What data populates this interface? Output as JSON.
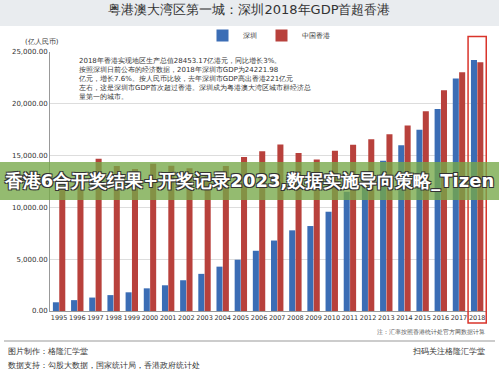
{
  "chart_data": {
    "type": "bar",
    "title": "粤港澳大湾区第一城：深圳2018年GDP首超香港",
    "y_label": "(亿人民币)",
    "categories": [
      "1995",
      "1996",
      "1997",
      "1998",
      "1999",
      "2000",
      "2001",
      "2002",
      "2003",
      "2004",
      "2005",
      "2006",
      "2007",
      "2008",
      "2009",
      "2010",
      "2011",
      "2012",
      "2013",
      "2014",
      "2015",
      "2016",
      "2017",
      "2018"
    ],
    "series": [
      {
        "name": "深圳",
        "color": "#3b6db5",
        "values": [
          842,
          1048,
          1297,
          1534,
          1804,
          2187,
          2482,
          2969,
          3585,
          4282,
          4951,
          5814,
          6802,
          7787,
          8201,
          9582,
          11506,
          12950,
          14500,
          16002,
          17503,
          19493,
          22438,
          24222
        ]
      },
      {
        "name": "中国香港",
        "color": "#b8413c",
        "values": [
          12074,
          13270,
          14707,
          13985,
          13700,
          14217,
          14026,
          13770,
          13364,
          14000,
          14873,
          15422,
          16082,
          15241,
          14616,
          15476,
          16053,
          16570,
          17066,
          17898,
          19276,
          21308,
          23045,
          24001
        ]
      }
    ],
    "ylim": [
      0,
      25000
    ],
    "yticks": [
      {
        "value": 0,
        "label": "0.00"
      },
      {
        "value": 5000,
        "label": "5,000.00"
      },
      {
        "value": 10000,
        "label": "10,000.00"
      },
      {
        "value": 15000,
        "label": "15,000.00"
      },
      {
        "value": 20000,
        "label": "20,000.00"
      },
      {
        "value": 25000,
        "label": "25,000.00"
      }
    ],
    "grid": true,
    "legend": "top",
    "annotations": [
      "2018年香港实现地区生产总值28453.17亿港元，同比增长3%。按照深圳日前公布的经济数据，2018年深圳市GDP为24221.98亿元，增长7.6%。按人民币比较，去年深圳市GDP高出香港221亿元左右，这是深圳市GDP首次超过香港。深圳成为粤港澳大湾区城市群经济总量第一的城市。",
      "注：汇率按照香港统计处官方网数据计算",
      "图片制作：格隆汇学堂",
      "数据支持：勾股大数据，国家统计局，香港政府统计处",
      "扫码关注格隆汇学堂",
      "香港6合开奖结果+开奖记录2023,数据实施导向策略_Tizen"
    ]
  }
}
